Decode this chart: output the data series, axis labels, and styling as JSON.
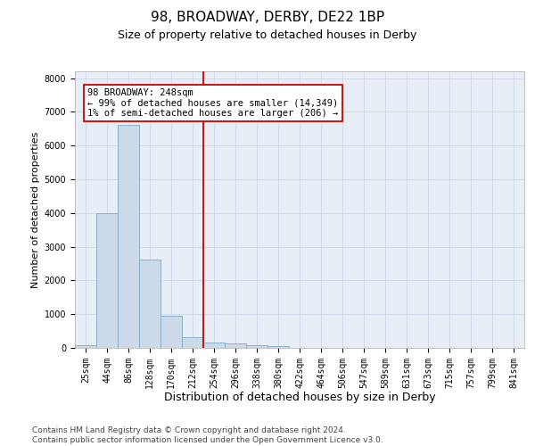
{
  "title1": "98, BROADWAY, DERBY, DE22 1BP",
  "title2": "Size of property relative to detached houses in Derby",
  "xlabel": "Distribution of detached houses by size in Derby",
  "ylabel": "Number of detached properties",
  "bin_labels": [
    "25sqm",
    "44sqm",
    "86sqm",
    "128sqm",
    "170sqm",
    "212sqm",
    "254sqm",
    "296sqm",
    "338sqm",
    "380sqm",
    "422sqm",
    "464sqm",
    "506sqm",
    "547sqm",
    "589sqm",
    "631sqm",
    "673sqm",
    "715sqm",
    "757sqm",
    "799sqm",
    "841sqm"
  ],
  "bar_values": [
    80,
    4000,
    6600,
    2620,
    960,
    330,
    150,
    130,
    80,
    60,
    0,
    0,
    0,
    0,
    0,
    0,
    0,
    0,
    0,
    0,
    0
  ],
  "bar_color": "#ccd9e8",
  "bar_edge_color": "#7aaac8",
  "vline_x": 5.5,
  "vline_color": "#cc0000",
  "annotation_text": "98 BROADWAY: 248sqm\n← 99% of detached houses are smaller (14,349)\n1% of semi-detached houses are larger (206) →",
  "annotation_box_color": "white",
  "annotation_box_edge": "#cc0000",
  "ylim": [
    0,
    8200
  ],
  "yticks": [
    0,
    1000,
    2000,
    3000,
    4000,
    5000,
    6000,
    7000,
    8000
  ],
  "grid_color": "#cdd6e8",
  "background_color": "#e8eef6",
  "footer_text": "Contains HM Land Registry data © Crown copyright and database right 2024.\nContains public sector information licensed under the Open Government Licence v3.0.",
  "title1_fontsize": 11,
  "title2_fontsize": 9,
  "xlabel_fontsize": 9,
  "ylabel_fontsize": 8,
  "tick_fontsize": 7,
  "annotation_fontsize": 7.5,
  "footer_fontsize": 6.5
}
